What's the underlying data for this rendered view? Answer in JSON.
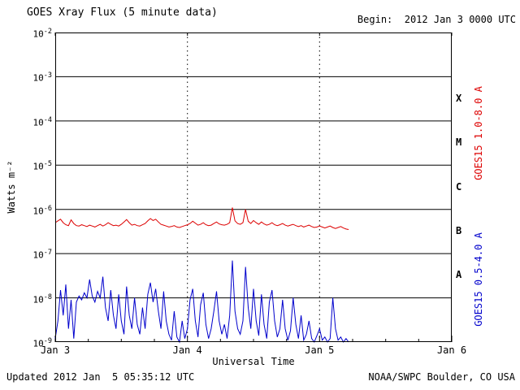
{
  "header": {
    "title": "GOES Xray Flux (5 minute data)",
    "begin_label": "Begin:  2012 Jan 3 0000 UTC"
  },
  "footer": {
    "updated": "Updated 2012 Jan  5 05:35:12 UTC",
    "source": "NOAA/SWPC Boulder, CO USA"
  },
  "colors": {
    "axis": "#000000",
    "long_series": "#dd0000",
    "short_series": "#0000cc"
  },
  "chart_data": {
    "type": "line",
    "title": "GOES Xray Flux (5 minute data)",
    "xlabel": "Universal Time",
    "ylabel": "Watts m⁻²",
    "x_axis": {
      "days_span": 3,
      "tick_labels": [
        "Jan 3",
        "Jan 4",
        "Jan 5",
        "Jan 6"
      ],
      "minor_tick_hours": 6
    },
    "y_axis": {
      "log_min": -9,
      "log_max": -2,
      "tick_exponents": [
        -2,
        -3,
        -4,
        -5,
        -6,
        -7,
        -8,
        -9
      ]
    },
    "grid": {
      "horizontal_solid_exponents": [
        -3,
        -4,
        -5,
        -6,
        -7,
        -8
      ],
      "vertical_dotted_days": [
        1,
        2
      ]
    },
    "flare_classes": [
      {
        "label": "X",
        "log_mid": -3.5
      },
      {
        "label": "M",
        "log_mid": -4.5
      },
      {
        "label": "C",
        "log_mid": -5.5
      },
      {
        "label": "B",
        "log_mid": -6.5
      },
      {
        "label": "A",
        "log_mid": -7.5
      }
    ],
    "series": [
      {
        "name": "GOES15 1.0-8.0 A",
        "color": "#dd0000",
        "x_step_days": 0.02,
        "flux": [
          5e-07,
          5.5e-07,
          6e-07,
          5e-07,
          4.5e-07,
          4.3e-07,
          5.8e-07,
          4.8e-07,
          4.3e-07,
          4.2e-07,
          4.5e-07,
          4.3e-07,
          4.1e-07,
          4.4e-07,
          4.2e-07,
          4e-07,
          4.3e-07,
          4.6e-07,
          4.2e-07,
          4.5e-07,
          5e-07,
          4.6e-07,
          4.3e-07,
          4.4e-07,
          4.2e-07,
          4.6e-07,
          5.2e-07,
          5.9e-07,
          5e-07,
          4.4e-07,
          4.6e-07,
          4.3e-07,
          4.2e-07,
          4.5e-07,
          4.8e-07,
          5.5e-07,
          6.2e-07,
          5.6e-07,
          6e-07,
          5.2e-07,
          4.6e-07,
          4.4e-07,
          4.2e-07,
          4e-07,
          4.1e-07,
          4.3e-07,
          4e-07,
          3.9e-07,
          4.1e-07,
          4.3e-07,
          4.5e-07,
          4.8e-07,
          5.4e-07,
          4.9e-07,
          4.4e-07,
          4.6e-07,
          5e-07,
          4.5e-07,
          4.3e-07,
          4.4e-07,
          4.8e-07,
          5.2e-07,
          4.7e-07,
          4.5e-07,
          4.4e-07,
          4.6e-07,
          5e-07,
          1.1e-06,
          5.5e-07,
          4.8e-07,
          4.6e-07,
          5e-07,
          1e-06,
          5.4e-07,
          4.8e-07,
          5.6e-07,
          5e-07,
          4.6e-07,
          5.2e-07,
          4.7e-07,
          4.4e-07,
          4.6e-07,
          5e-07,
          4.5e-07,
          4.3e-07,
          4.5e-07,
          4.8e-07,
          4.4e-07,
          4.2e-07,
          4.4e-07,
          4.6e-07,
          4.3e-07,
          4.1e-07,
          4.3e-07,
          4e-07,
          4.2e-07,
          4.4e-07,
          4.1e-07,
          3.9e-07,
          4e-07,
          4.2e-07,
          4e-07,
          3.8e-07,
          4e-07,
          4.2e-07,
          3.9e-07,
          3.7e-07,
          3.9e-07,
          4.1e-07,
          3.8e-07,
          3.6e-07,
          3.5e-07
        ]
      },
      {
        "name": "GOES15 0.5-4.0 A",
        "color": "#0000cc",
        "x_step_days": 0.02,
        "flux": [
          1.2e-09,
          3e-09,
          1.5e-08,
          4e-09,
          2e-08,
          2e-09,
          9e-09,
          1.2e-09,
          8e-09,
          1.1e-08,
          9e-09,
          1.3e-08,
          1e-08,
          2.6e-08,
          1.1e-08,
          8e-09,
          1.4e-08,
          1e-08,
          3e-08,
          6e-09,
          3e-09,
          1.5e-08,
          4e-09,
          2e-09,
          1.2e-08,
          3e-09,
          1.5e-09,
          1.8e-08,
          4e-09,
          2e-09,
          1e-08,
          2.5e-09,
          1.5e-09,
          6e-09,
          2e-09,
          1.2e-08,
          2.2e-08,
          8e-09,
          1.6e-08,
          5e-09,
          2e-09,
          1.4e-08,
          3e-09,
          1.5e-09,
          1.1e-09,
          5e-09,
          1.3e-09,
          1e-09,
          3e-09,
          1.2e-09,
          2e-09,
          9e-09,
          1.6e-08,
          3e-09,
          1.3e-09,
          7e-09,
          1.3e-08,
          2.5e-09,
          1.2e-09,
          2e-09,
          5e-09,
          1.4e-08,
          3e-09,
          1.5e-09,
          2.5e-09,
          1.2e-09,
          4e-09,
          7e-08,
          5e-09,
          2e-09,
          1.5e-09,
          3e-09,
          5e-08,
          6e-09,
          2e-09,
          1.6e-08,
          3e-09,
          1.4e-09,
          1.2e-08,
          2.5e-09,
          1.2e-09,
          8e-09,
          1.5e-08,
          3e-09,
          1.3e-09,
          2e-09,
          9e-09,
          2e-09,
          1.1e-09,
          1.8e-09,
          1e-08,
          2.5e-09,
          1.2e-09,
          4e-09,
          1.1e-09,
          1.5e-09,
          3e-09,
          1.2e-09,
          1e-09,
          1.4e-09,
          2e-09,
          1.1e-09,
          1.3e-09,
          1e-09,
          1.2e-09,
          1e-08,
          2e-09,
          1.1e-09,
          1.3e-09,
          1e-09,
          1.2e-09,
          1e-09
        ]
      }
    ]
  }
}
